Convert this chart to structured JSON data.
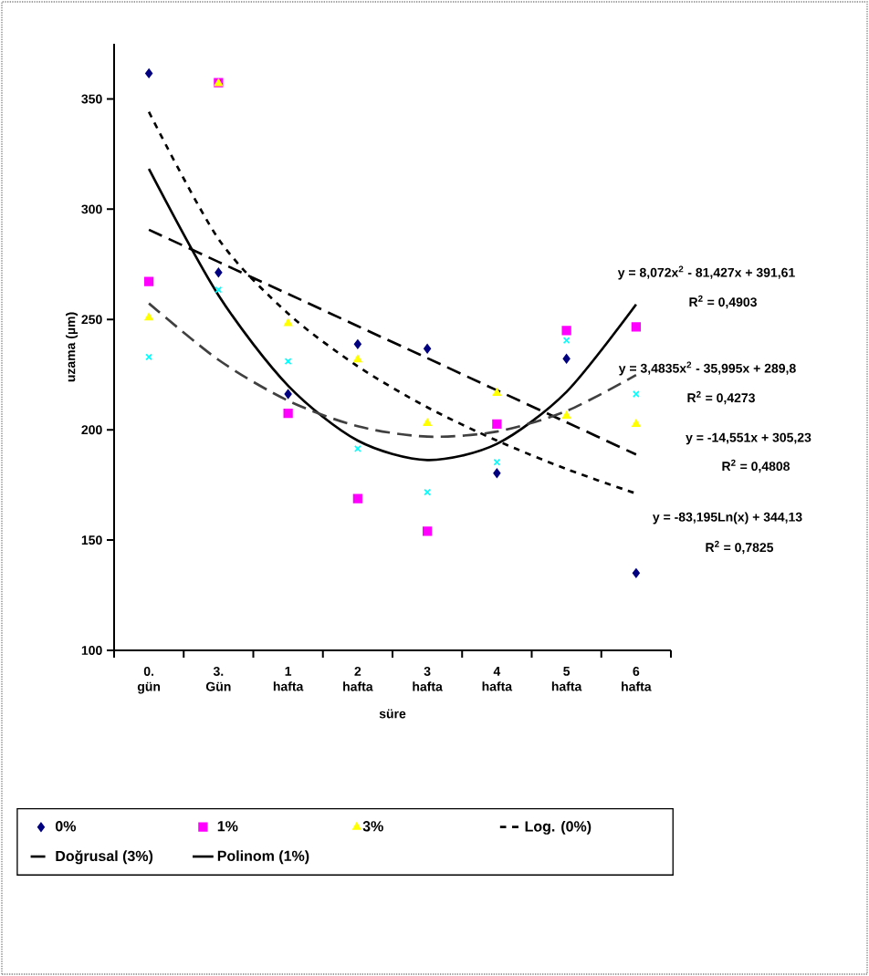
{
  "chart_data": {
    "type": "scatter",
    "xlabel": "süre",
    "ylabel": "uzama (µm)",
    "categories": [
      "0. gün",
      "3. Gün",
      "1 hafta",
      "2 hafta",
      "3 hafta",
      "4 hafta",
      "5 hafta",
      "6 hafta"
    ],
    "ylim": [
      100,
      375
    ],
    "yticks": [
      100,
      150,
      200,
      250,
      300,
      350
    ],
    "legend": "bottom",
    "series": [
      {
        "name": "0%",
        "color": "#000080",
        "marker": "diamond",
        "values": [
          361.6,
          271.3,
          216.2,
          238.8,
          236.8,
          180.3,
          232.2,
          135
        ]
      },
      {
        "name": "1%",
        "color": "#ff00ff",
        "marker": "square",
        "values": [
          267.2,
          357.4,
          207.5,
          168.8,
          154,
          202.6,
          245,
          246.6
        ]
      },
      {
        "name": "3%",
        "color": "#ffff00",
        "marker": "triangle",
        "values": [
          250.8,
          357,
          248.3,
          231.8,
          203,
          216.6,
          206.3,
          202.6
        ]
      },
      {
        "color": "#00ffff",
        "marker": "cross",
        "values": [
          233,
          263.5,
          231,
          191.4,
          171.7,
          185.3,
          240.5,
          216.2
        ]
      },
      {
        "name": "Log. (0%)",
        "type": "line",
        "color": "#000000",
        "line_style": "dotted",
        "marker": "none",
        "values": [
          344.1,
          286.5,
          252.7,
          228.8,
          210.2,
          195.1,
          182.2,
          171.1
        ]
      },
      {
        "name": "Doğrusal (3%)",
        "type": "line",
        "color": "#000000",
        "line_style": "dashed",
        "marker": "none",
        "values": [
          290.7,
          276.1,
          261.6,
          247.0,
          232.5,
          217.9,
          203.4,
          188.8
        ]
      },
      {
        "name": "Polinom (1%)",
        "type": "line",
        "color": "#000000",
        "line_style": "solid",
        "marker": "none",
        "values": [
          318.3,
          261.0,
          220.0,
          195.1,
          186.3,
          193.6,
          217.2,
          256.8
        ]
      },
      {
        "type": "line",
        "color": "#404040",
        "line_style": "dashed",
        "marker": "none",
        "values": [
          257.3,
          231.7,
          213.2,
          201.6,
          196.9,
          199.2,
          208.5,
          224.8
        ]
      }
    ],
    "annotations": [
      "y = 8,072x$^{2}$ - 81,427x + 391,61",
      "R$^{2}$ = 0,4903",
      "y = 3,4835x$^{2}$ - 35,995x + 289,8",
      "R$^{2}$ = 0,4273",
      "y = -14,551x + 305,23",
      "R$^{2}$ = 0,4808",
      "y = -83,195Ln(x) + 344,13",
      "R$^{2}$ = 0,7825"
    ]
  }
}
